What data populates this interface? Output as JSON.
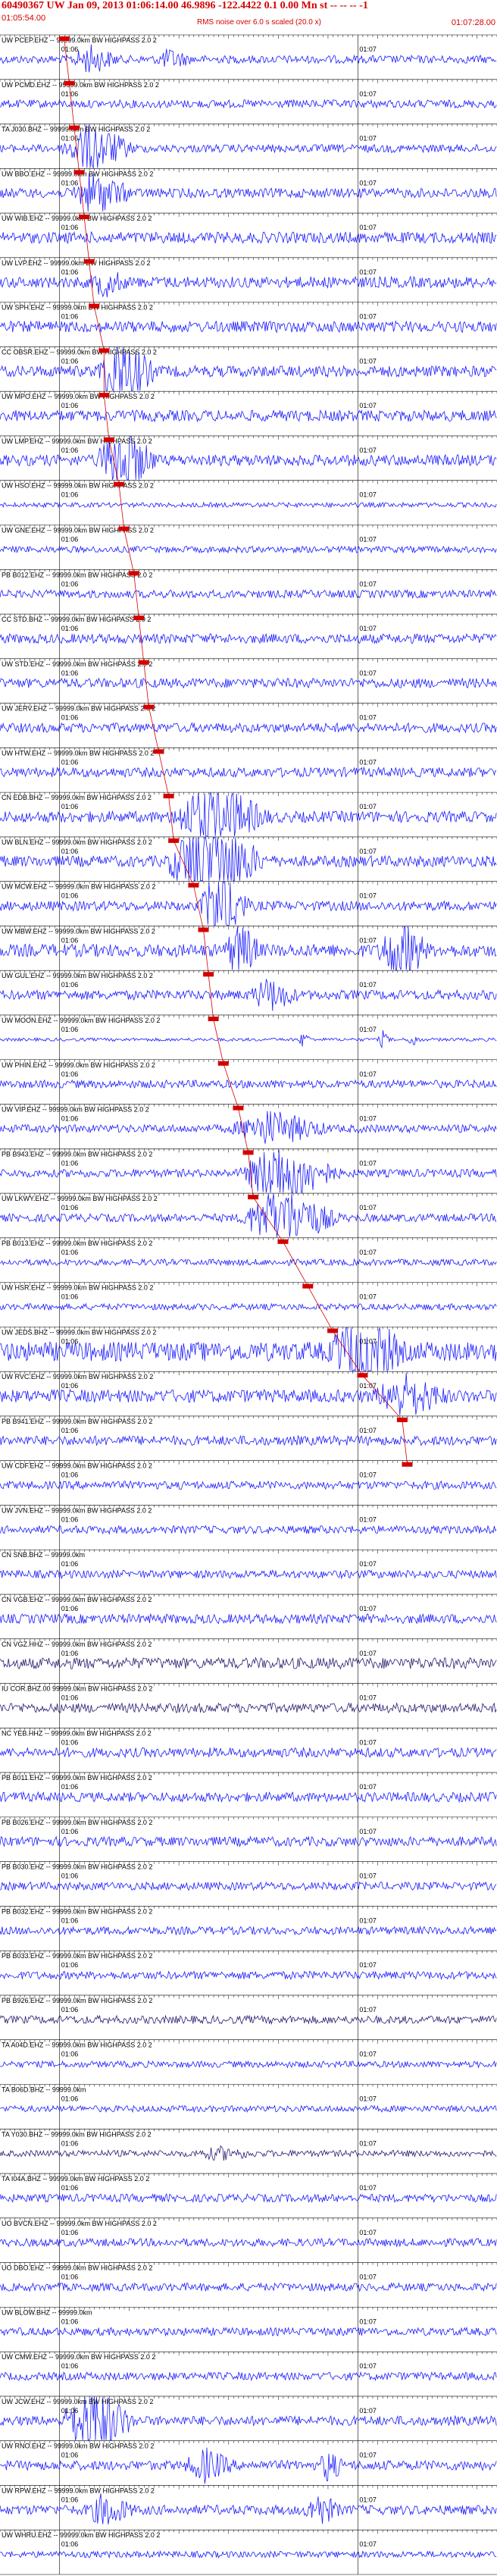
{
  "header": {
    "title": "60490367 UW Jan 09, 2013 01:06:14.00 46.9896 -122.4422 0.1 0.00 Mn st -- -- -- -1",
    "start_time": "01:05:54.00",
    "note": "RMS noise over 6.0 s scaled (20.0 x)",
    "end_time": "01:07:28.00"
  },
  "colors": {
    "trace": "#1a1aff",
    "trace_dark": "#2a1a6e",
    "pick": "#d40000",
    "text": "#000000",
    "grid": "#000000"
  },
  "chart_data": {
    "type": "line",
    "xlabel": "",
    "ylabel": "",
    "time_ticks": [
      {
        "label": "01:06",
        "t": 6
      },
      {
        "label": "01:07",
        "t": 66
      }
    ],
    "xlim": [
      -6,
      94
    ],
    "traces": [
      {
        "label": "UW PCEP.EHZ -- 99999.0km BW HIGHPASS 2.0 2",
        "pick": 8,
        "events": [
          [
            12,
            4,
            3
          ],
          [
            28,
            3,
            2
          ]
        ],
        "amp": 0.5
      },
      {
        "label": "UW PCMD.EHZ -- 99999.0km BW HIGHPASS 2.0 2",
        "pick": 9,
        "events": [],
        "amp": 0.5
      },
      {
        "label": "TA J030.BHZ -- 99999.0km BW HIGHPASS 2.0 2",
        "pick": 10,
        "events": [
          [
            12,
            6,
            6
          ]
        ],
        "amp": 0.5
      },
      {
        "label": "UW BBO.EHZ -- 99999.0km BW HIGHPASS 2.0 2",
        "pick": 11,
        "events": [
          [
            13,
            5,
            4
          ]
        ],
        "amp": 0.6
      },
      {
        "label": "UW WIB.EHZ -- 99999.0km BW HIGHPASS 2.0 2",
        "pick": 12,
        "events": [],
        "amp": 0.7
      },
      {
        "label": "UW LVP.EHZ -- 99999.0km BW HIGHPASS 2.0 2",
        "pick": 13,
        "events": [
          [
            15,
            3,
            2
          ]
        ],
        "amp": 0.7
      },
      {
        "label": "UW SPH.EHZ -- 99999.0km BW HIGHPASS 2.0 2",
        "pick": 14,
        "events": [],
        "amp": 0.7
      },
      {
        "label": "CC OBSR.EHZ -- 99999.0km BW HIGHPASS 2.0 2",
        "pick": 16,
        "events": [
          [
            18,
            5,
            6
          ]
        ],
        "amp": 0.7
      },
      {
        "label": "UW MPO.EHZ -- 99999.0km BW HIGHPASS 2.0 2",
        "pick": 16,
        "events": [],
        "amp": 0.7
      },
      {
        "label": "UW LMP.EHZ -- 99999.0km BW HIGHPASS 2.0 2",
        "pick": 17,
        "events": [
          [
            18,
            5,
            6
          ]
        ],
        "amp": 0.7
      },
      {
        "label": "UW HSO.EHZ -- 99999.0km BW HIGHPASS 2.0 2",
        "pick": 19,
        "events": [],
        "amp": 0.3
      },
      {
        "label": "UW GNE.EHZ -- 99999.0km BW HIGHPASS 2.0 2",
        "pick": 20,
        "events": [],
        "amp": 0.4
      },
      {
        "label": "PB B012.EHZ -- 99999.0km BW HIGHPASS 2.0 2",
        "pick": 22,
        "events": [],
        "amp": 0.5
      },
      {
        "label": "CC STD.BHZ -- 99999.0km BW HIGHPASS 2.0 2",
        "pick": 23,
        "events": [],
        "amp": 0.6
      },
      {
        "label": "UW STD.EHZ -- 99999.0km BW HIGHPASS 2.0 2",
        "pick": 24,
        "events": [],
        "amp": 0.6
      },
      {
        "label": "UW JERV.EHZ -- 99999.0km BW HIGHPASS 2.0 2",
        "pick": 25,
        "events": [],
        "amp": 0.6
      },
      {
        "label": "UW HTW.EHZ -- 99999.0km BW HIGHPASS 2.0 2",
        "pick": 27,
        "events": [],
        "amp": 0.6
      },
      {
        "label": "CN EDB.BHZ -- 99999.0km BW HIGHPASS 2.0 2",
        "pick": 29,
        "events": [
          [
            36,
            8,
            6
          ]
        ],
        "amp": 0.7
      },
      {
        "label": "UW BLN.EHZ -- 99999.0km BW HIGHPASS 2.0 2",
        "pick": 30,
        "events": [
          [
            35,
            8,
            9
          ]
        ],
        "amp": 0.7
      },
      {
        "label": "UW MCW.EHZ -- 99999.0km BW HIGHPASS 2.0 2",
        "pick": 34,
        "events": [
          [
            38,
            4,
            9
          ]
        ],
        "amp": 0.6
      },
      {
        "label": "UW MBW.EHZ -- 99999.0km BW HIGHPASS 2.0 2",
        "pick": 36,
        "events": [
          [
            42,
            3,
            4
          ],
          [
            74,
            4,
            6
          ]
        ],
        "amp": 0.8
      },
      {
        "label": "UW GUL.EHZ -- 99999.0km BW HIGHPASS 2.0 2",
        "pick": 37,
        "events": [
          [
            48,
            4,
            3
          ]
        ],
        "amp": 0.6
      },
      {
        "label": "UW MOON.EHZ -- 99999.0km BW HIGHPASS 2.0 2",
        "pick": 38,
        "events": [
          [
            55,
            1,
            5
          ],
          [
            71,
            1,
            5
          ],
          [
            77,
            1,
            5
          ]
        ],
        "amp": 0.2
      },
      {
        "label": "UW PHIN.EHZ -- 99999.0km BW HIGHPASS 2.0 2",
        "pick": 40,
        "events": [],
        "amp": 0.5
      },
      {
        "label": "UW VIP.EHZ -- 99999.0km BW HIGHPASS 2.0 2",
        "pick": 43,
        "events": [
          [
            48,
            8,
            4
          ]
        ],
        "amp": 0.5
      },
      {
        "label": "PB B943.EHZ -- 99999.0km BW HIGHPASS 2.0 2",
        "pick": 45,
        "events": [
          [
            50,
            8,
            8
          ]
        ],
        "amp": 0.5
      },
      {
        "label": "UW LKWY.EHZ -- 99999.0km BW HIGHPASS 2.0 2",
        "pick": 46,
        "events": [
          [
            50,
            8,
            8
          ]
        ],
        "amp": 0.5
      },
      {
        "label": "PB B013.EHZ -- 99999.0km BW HIGHPASS 2.0 2",
        "pick": 52,
        "events": [],
        "amp": 0.4
      },
      {
        "label": "UW HSR.EHZ -- 99999.0km BW HIGHPASS 2.0 2",
        "pick": 57,
        "events": [],
        "amp": 0.4
      },
      {
        "label": "UW JEDS.BHZ -- 99999.0km BW HIGHPASS 2.0 2",
        "pick": 62,
        "events": [
          [
            66,
            6,
            4
          ]
        ],
        "amp": 1.2
      },
      {
        "label": "UW RVC.EHZ -- 99999.0km BW HIGHPASS 2.0 2",
        "pick": 68,
        "events": [
          [
            75,
            6,
            3
          ]
        ],
        "amp": 0.8
      },
      {
        "label": "PB B941.EHZ -- 99999.0km BW HIGHPASS 2.0 2",
        "pick": 76,
        "events": [],
        "amp": 0.6
      },
      {
        "label": "UW CDF.EHZ -- 99999.0km BW HIGHPASS 2.0 2",
        "pick": 77,
        "events": [],
        "amp": 0.5
      },
      {
        "label": "UW JVN.EHZ -- 99999.0km BW HIGHPASS 2.0 2",
        "pick": null,
        "events": [],
        "amp": 0.5
      },
      {
        "label": "CN SNB.BHZ -- 99999.0km",
        "pick": null,
        "events": [],
        "amp": 0.5
      },
      {
        "label": "CN VGB.EHZ -- 99999.0km BW HIGHPASS 2.0 2",
        "pick": null,
        "events": [],
        "amp": 0.6
      },
      {
        "label": "CN VGZ.HHZ -- 99999.0km BW HIGHPASS 2.0 2",
        "pick": null,
        "events": [],
        "amp": 0.7,
        "dark": true
      },
      {
        "label": "IU COR.BHZ.00 99999.0km BW HIGHPASS 2.0 2",
        "pick": null,
        "events": [],
        "amp": 0.6,
        "dark": true
      },
      {
        "label": "NC YEB.HHZ -- 99999.0km BW HIGHPASS 2.0 2",
        "pick": null,
        "events": [],
        "amp": 0.6
      },
      {
        "label": "PB B011.EHZ -- 99999.0km BW HIGHPASS 2.0 2",
        "pick": null,
        "events": [],
        "amp": 0.6
      },
      {
        "label": "PB B026.EHZ -- 99999.0km BW HIGHPASS 2.0 2",
        "pick": null,
        "events": [],
        "amp": 0.6
      },
      {
        "label": "PB B030.EHZ -- 99999.0km BW HIGHPASS 2.0 2",
        "pick": null,
        "events": [],
        "amp": 0.5
      },
      {
        "label": "PB B032.EHZ -- 99999.0km BW HIGHPASS 2.0 2",
        "pick": null,
        "events": [],
        "amp": 0.5
      },
      {
        "label": "PB B033.EHZ -- 99999.0km BW HIGHPASS 2.0 2",
        "pick": null,
        "events": [],
        "amp": 0.5
      },
      {
        "label": "PB B926.EHZ -- 99999.0km BW HIGHPASS 2.0 2",
        "pick": null,
        "events": [],
        "amp": 0.5,
        "dark": true
      },
      {
        "label": "TA A04D.EHZ -- 99999.0km BW HIGHPASS 2.0 2",
        "pick": null,
        "events": [],
        "amp": 0.4
      },
      {
        "label": "TA B06D.BHZ -- 99999.0km",
        "pick": null,
        "events": [],
        "amp": 0.4
      },
      {
        "label": "TA Y030.BHZ -- 99999.0km BW HIGHPASS 2.0 2",
        "pick": null,
        "events": [
          [
            38,
            5,
            1.5
          ]
        ],
        "amp": 0.4,
        "dark": true
      },
      {
        "label": "TA I04A.BHZ -- 99999.0km BW HIGHPASS 2.0 2",
        "pick": null,
        "events": [],
        "amp": 0.5
      },
      {
        "label": "UO BVCN.EHZ -- 99999.0km BW HIGHPASS 2.0 2",
        "pick": null,
        "events": [],
        "amp": 0.5
      },
      {
        "label": "UO DBO.EHZ -- 99999.0km BW HIGHPASS 2.0 2",
        "pick": null,
        "events": [],
        "amp": 0.5
      },
      {
        "label": "UW BLOW.BHZ -- 99999.0km",
        "pick": null,
        "events": [],
        "amp": 0.5
      },
      {
        "label": "UW CMW.EHZ -- 99999.0km BW HIGHPASS 2.0 2",
        "pick": null,
        "events": [],
        "amp": 0.5
      },
      {
        "label": "UW JCW.EHZ -- 99999.0km BW HIGHPASS 2.0 2",
        "pick": null,
        "events": [
          [
            12,
            6,
            8
          ]
        ],
        "amp": 0.6
      },
      {
        "label": "UW RNO.EHZ -- 99999.0km BW HIGHPASS 2.0 2",
        "pick": null,
        "events": [
          [
            35,
            4,
            3
          ],
          [
            60,
            2,
            3
          ]
        ],
        "amp": 0.6
      },
      {
        "label": "UW RPW.EHZ -- 99999.0km BW HIGHPASS 2.0 2",
        "pick": null,
        "events": [
          [
            15,
            4,
            3
          ],
          [
            58,
            3,
            3
          ]
        ],
        "amp": 0.6
      },
      {
        "label": "UW WHRU.EHZ -- 99999.0km BW HIGHPASS 2.0 2",
        "pick": null,
        "events": [],
        "amp": 0.4
      }
    ]
  }
}
